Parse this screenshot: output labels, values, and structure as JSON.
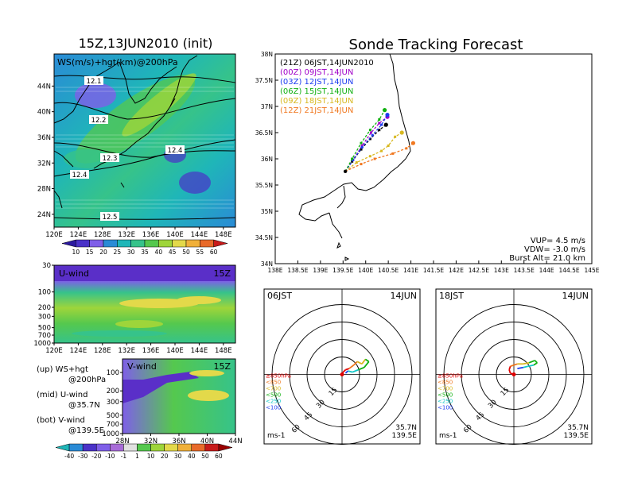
{
  "chart_data": [
    {
      "type": "heatmap",
      "title": "15Z,13JUN2010 (init)",
      "annotation": "WS(m/s)+hgt(km)@200hPa",
      "x_ticks": [
        "120E",
        "124E",
        "128E",
        "132E",
        "136E",
        "140E",
        "144E",
        "148E"
      ],
      "y_ticks": [
        "24N",
        "28N",
        "32N",
        "36N",
        "40N",
        "44N"
      ],
      "xlim": [
        120,
        150
      ],
      "ylim": [
        22,
        49
      ],
      "contour_labels": [
        "12.1",
        "12.2",
        "12.3",
        "12.4",
        "12.4",
        "12.5"
      ],
      "colorbar_ticks": [
        "10",
        "15",
        "20",
        "25",
        "30",
        "35",
        "40",
        "45",
        "50",
        "55",
        "60"
      ],
      "colorbar_colors": [
        "#2c1aa0",
        "#4a32c8",
        "#7f5fe8",
        "#2a8bd6",
        "#1fb6b8",
        "#36c38a",
        "#55c84e",
        "#9ed53a",
        "#e3d94a",
        "#f0b03a",
        "#e86a2a",
        "#c81a1a"
      ]
    },
    {
      "type": "heatmap",
      "title": "U-wind",
      "time": "15Z",
      "x_ticks": [
        "120E",
        "124E",
        "128E",
        "132E",
        "136E",
        "140E",
        "144E",
        "148E"
      ],
      "y_ticks": [
        "30",
        "100",
        "200",
        "300",
        "500",
        "700",
        "1000"
      ]
    },
    {
      "type": "heatmap",
      "title": "V-wind",
      "time": "15Z",
      "x_ticks": [
        "28N",
        "32N",
        "36N",
        "40N",
        "44N"
      ],
      "y_ticks": [
        "100",
        "200",
        "300",
        "500",
        "700",
        "1000"
      ],
      "colorbar_ticks": [
        "-40",
        "-30",
        "-20",
        "-10",
        "-1",
        "1",
        "10",
        "20",
        "30",
        "40",
        "50",
        "60"
      ],
      "colorbar_colors": [
        "#1fb6b8",
        "#2a8bd6",
        "#4a32c8",
        "#7f5fe8",
        "#a86cd8",
        "#e0e0e0",
        "#55c84e",
        "#9ed53a",
        "#e3d94a",
        "#f0b03a",
        "#e86a2a",
        "#c81a1a",
        "#9a0000"
      ]
    },
    {
      "type": "line",
      "title": "Sonde Tracking Forecast",
      "x_ticks": [
        "138E",
        "138.5E",
        "139E",
        "139.5E",
        "140E",
        "140.5E",
        "141E",
        "141.5E",
        "142E",
        "142.5E",
        "143E",
        "143.5E",
        "144E",
        "144.5E",
        "145E"
      ],
      "y_ticks": [
        "34N",
        "34.5N",
        "35N",
        "35.5N",
        "36N",
        "36.5N",
        "37N",
        "37.5N",
        "38N"
      ],
      "xlim": [
        138,
        145
      ],
      "ylim": [
        34,
        38
      ],
      "series": [
        {
          "name": "(21Z)  06JST,14JUN2010",
          "color": "#000000",
          "points": [
            [
              139.55,
              35.76
            ],
            [
              139.7,
              35.95
            ],
            [
              139.9,
              36.18
            ],
            [
              140.1,
              36.38
            ],
            [
              140.3,
              36.55
            ],
            [
              140.45,
              36.65
            ]
          ]
        },
        {
          "name": "(00Z)  09JST,14JUN",
          "color": "#a000c8",
          "points": [
            [
              139.55,
              35.76
            ],
            [
              139.72,
              35.98
            ],
            [
              139.92,
              36.25
            ],
            [
              140.12,
              36.5
            ],
            [
              140.3,
              36.68
            ],
            [
              140.48,
              36.8
            ]
          ]
        },
        {
          "name": "(03Z)  12JST,14JUN",
          "color": "#1c3cf0",
          "points": [
            [
              139.55,
              35.76
            ],
            [
              139.72,
              35.98
            ],
            [
              139.92,
              36.22
            ],
            [
              140.15,
              36.45
            ],
            [
              140.35,
              36.65
            ],
            [
              140.48,
              36.84
            ]
          ]
        },
        {
          "name": "(06Z)  15JST,14JUN",
          "color": "#10b010",
          "points": [
            [
              139.55,
              35.76
            ],
            [
              139.7,
              36.0
            ],
            [
              139.9,
              36.3
            ],
            [
              140.1,
              36.55
            ],
            [
              140.3,
              36.75
            ],
            [
              140.42,
              36.93
            ]
          ]
        },
        {
          "name": "(09Z)  18JST,14JUN",
          "color": "#d8b820",
          "points": [
            [
              139.55,
              35.76
            ],
            [
              139.8,
              35.93
            ],
            [
              140.1,
              36.05
            ],
            [
              140.35,
              36.15
            ],
            [
              140.5,
              36.25
            ],
            [
              140.65,
              36.42
            ],
            [
              140.8,
              36.5
            ]
          ]
        },
        {
          "name": "(12Z)  21JST,14JUN",
          "color": "#f07820",
          "points": [
            [
              139.55,
              35.76
            ],
            [
              139.9,
              35.9
            ],
            [
              140.2,
              36.0
            ],
            [
              140.6,
              36.1
            ],
            [
              140.9,
              36.2
            ],
            [
              141.05,
              36.3
            ]
          ]
        }
      ],
      "stats": {
        "vup": "VUP=  4.5  m/s",
        "vdw": "VDW=  -3.0  m/s",
        "burst": "Burst  Alt=  21.0  km"
      }
    },
    {
      "type": "scatter",
      "title": "06JST",
      "date": "14JUN",
      "ring_labels": [
        "15",
        "30",
        "45",
        "60"
      ],
      "legend": [
        "≥850hPa",
        "<850",
        "<700",
        "<500",
        "<250",
        "<100"
      ],
      "legend_colors": [
        "#e00000",
        "#f07820",
        "#d8b820",
        "#10b010",
        "#10c8c8",
        "#1c3cf0"
      ],
      "location_lat": "35.7N",
      "location_lon": "139.5E",
      "units": "ms-1",
      "hodograph": [
        [
          0,
          0
        ],
        [
          1,
          2
        ],
        [
          3,
          4
        ],
        [
          6,
          5
        ],
        [
          10,
          8
        ],
        [
          13,
          11
        ],
        [
          17,
          9
        ],
        [
          20,
          13
        ],
        [
          23,
          11
        ],
        [
          19,
          6
        ],
        [
          14,
          4
        ],
        [
          9,
          2
        ],
        [
          5,
          3
        ],
        [
          3,
          1
        ]
      ]
    },
    {
      "type": "scatter",
      "title": "18JST",
      "date": "14JUN",
      "ring_labels": [
        "15",
        "30",
        "45",
        "60"
      ],
      "legend": [
        "≥850hPa",
        "<850",
        "<700",
        "<500",
        "<250",
        "<100"
      ],
      "legend_colors": [
        "#e00000",
        "#f07820",
        "#d8b820",
        "#10b010",
        "#10c8c8",
        "#1c3cf0"
      ],
      "location_lat": "35.7N",
      "location_lon": "139.5E",
      "units": "ms-1",
      "hodograph": [
        [
          0,
          0
        ],
        [
          -3,
          1
        ],
        [
          -4,
          4
        ],
        [
          -3,
          7
        ],
        [
          0,
          8
        ],
        [
          3,
          9
        ],
        [
          8,
          9
        ],
        [
          13,
          10
        ],
        [
          18,
          12
        ],
        [
          20,
          10
        ],
        [
          17,
          8
        ],
        [
          12,
          7
        ],
        [
          8,
          6
        ],
        [
          3,
          5
        ]
      ]
    }
  ],
  "legend_text": {
    "up1": "(up)  WS+hgt",
    "up2": "@200hPa",
    "mid1": "(mid)  U-wind",
    "mid2": "@35.7N",
    "bot1": "(bot)  V-wind",
    "bot2": "@139.5E"
  }
}
